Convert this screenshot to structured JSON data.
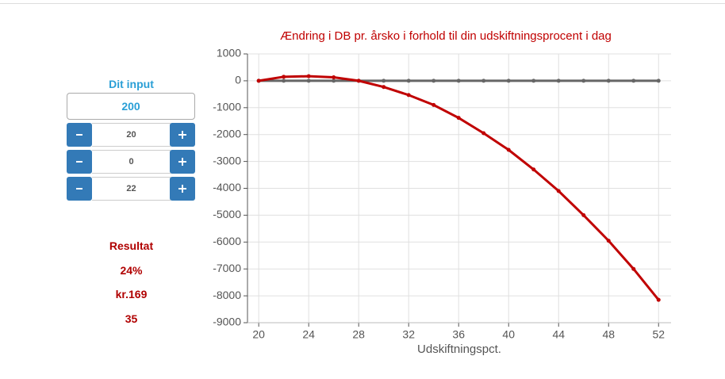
{
  "panel": {
    "heading": "Dit input",
    "input": "200",
    "steppers": [
      "20",
      "0",
      "22"
    ]
  },
  "results": {
    "title": "Resultat",
    "lines": [
      "24%",
      "kr.169",
      "35"
    ]
  },
  "chart_data": {
    "type": "line",
    "title": "Ændring i DB pr. årsko i forhold til din udskiftningsprocent i dag",
    "x_label": "Udskiftningspct.",
    "x": [
      20,
      22,
      24,
      26,
      28,
      30,
      32,
      34,
      36,
      38,
      40,
      42,
      44,
      46,
      48,
      50,
      52
    ],
    "series": [
      {
        "color": "#666666",
        "values": [
          0,
          0,
          0,
          0,
          0,
          0,
          0,
          0,
          0,
          0,
          0,
          0,
          0,
          0,
          0,
          0,
          0
        ]
      },
      {
        "color": "#c00000",
        "values": [
          0,
          150,
          170,
          130,
          0,
          -230,
          -530,
          -900,
          -1380,
          -1950,
          -2570,
          -3300,
          -4100,
          -5000,
          -5950,
          -7000,
          -8150
        ]
      }
    ],
    "xlim": [
      19.1,
      53
    ],
    "xticks": [
      20,
      24,
      28,
      32,
      36,
      40,
      44,
      48,
      52
    ],
    "ylim": [
      -9000,
      1000
    ],
    "yticks": [
      1000,
      0,
      -1000,
      -2000,
      -3000,
      -4000,
      -5000,
      -6000,
      -7000,
      -8000,
      -9000
    ],
    "grid": true
  }
}
